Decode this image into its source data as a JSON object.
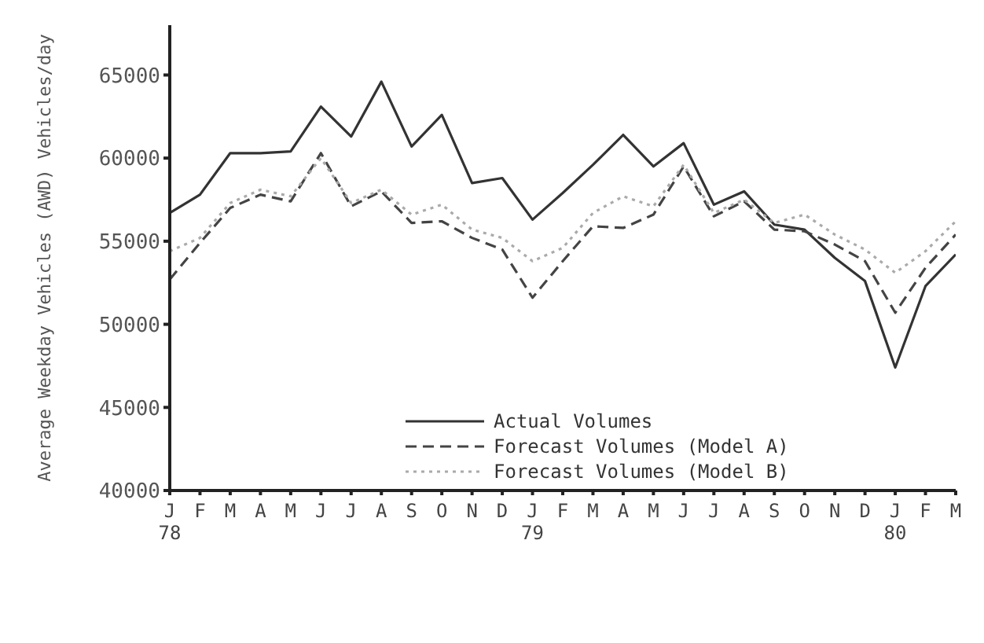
{
  "chart_data": {
    "type": "line",
    "ylabel": "Average Weekday Vehicles (AWD) Vehicles/day",
    "categories": [
      "J\n78",
      "F",
      "M",
      "A",
      "M",
      "J",
      "J",
      "A",
      "S",
      "O",
      "N",
      "D",
      "J\n79",
      "F",
      "M",
      "A",
      "M",
      "J",
      "J",
      "A",
      "S",
      "O",
      "N",
      "D",
      "J\n80",
      "F",
      "M"
    ],
    "series": [
      {
        "name": "Actual Volumes",
        "color": "#333333",
        "line_style": "solid",
        "values": [
          56700,
          57800,
          60300,
          60300,
          60400,
          63100,
          61300,
          64600,
          60700,
          62600,
          58500,
          58800,
          56300,
          57900,
          59600,
          61400,
          59500,
          60900,
          57200,
          58000,
          56000,
          55700,
          54000,
          52600,
          47400,
          52300,
          54200
        ]
      },
      {
        "name": "Forecast Volumes (Model A)",
        "color": "#444444",
        "line_style": "dashed",
        "values": [
          52700,
          54900,
          57000,
          57800,
          57400,
          60300,
          57100,
          58000,
          56100,
          56200,
          55200,
          54500,
          51600,
          53800,
          55900,
          55800,
          56600,
          59500,
          56500,
          57400,
          55700,
          55600,
          54800,
          53800,
          50700,
          53400,
          55400
        ]
      },
      {
        "name": "Forecast Volumes (Model B)",
        "color": "#aaaaaa",
        "line_style": "dotted",
        "values": [
          54400,
          55200,
          57300,
          58100,
          57700,
          60000,
          57300,
          58100,
          56600,
          57200,
          55700,
          55200,
          53800,
          54600,
          56700,
          57700,
          57100,
          59600,
          56700,
          57500,
          56100,
          56600,
          55400,
          54500,
          53100,
          54400,
          56200
        ]
      }
    ],
    "ylim": [
      40000,
      68000
    ],
    "yticks": [
      40000,
      45000,
      50000,
      55000,
      60000,
      65000
    ],
    "grid": false,
    "legend": "bottom",
    "marker": "none"
  }
}
